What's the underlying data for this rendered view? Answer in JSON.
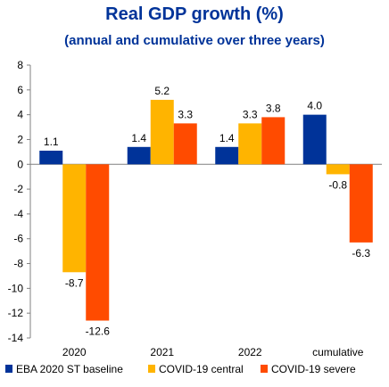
{
  "chart_data": {
    "type": "bar",
    "title": "Real GDP growth (%)",
    "subtitle": "(annual and cumulative over three years)",
    "xlabel": "",
    "ylabel": "",
    "categories": [
      "2020",
      "2021",
      "2022",
      "cumulative"
    ],
    "series": [
      {
        "name": "EBA 2020 ST baseline",
        "color": "#003399",
        "values": [
          1.1,
          1.4,
          1.4,
          4.0
        ],
        "labels": [
          "1.1",
          "1.4",
          "1.4",
          "4.0"
        ]
      },
      {
        "name": "COVID-19 central",
        "color": "#FFB400",
        "values": [
          -8.7,
          5.2,
          3.3,
          -0.8
        ],
        "labels": [
          "-8.7",
          "5.2",
          "3.3",
          "-0.8"
        ]
      },
      {
        "name": "COVID-19 severe",
        "color": "#FF4B00",
        "values": [
          -12.6,
          3.3,
          3.8,
          -6.3
        ],
        "labels": [
          "-12.6",
          "3.3",
          "3.8",
          "-6.3"
        ]
      }
    ],
    "ylim": [
      -14,
      8
    ],
    "yticks": [
      8,
      6,
      4,
      2,
      0,
      -2,
      -4,
      -6,
      -8,
      -10,
      -12,
      -14
    ],
    "grid": false,
    "legend": "bottom"
  }
}
